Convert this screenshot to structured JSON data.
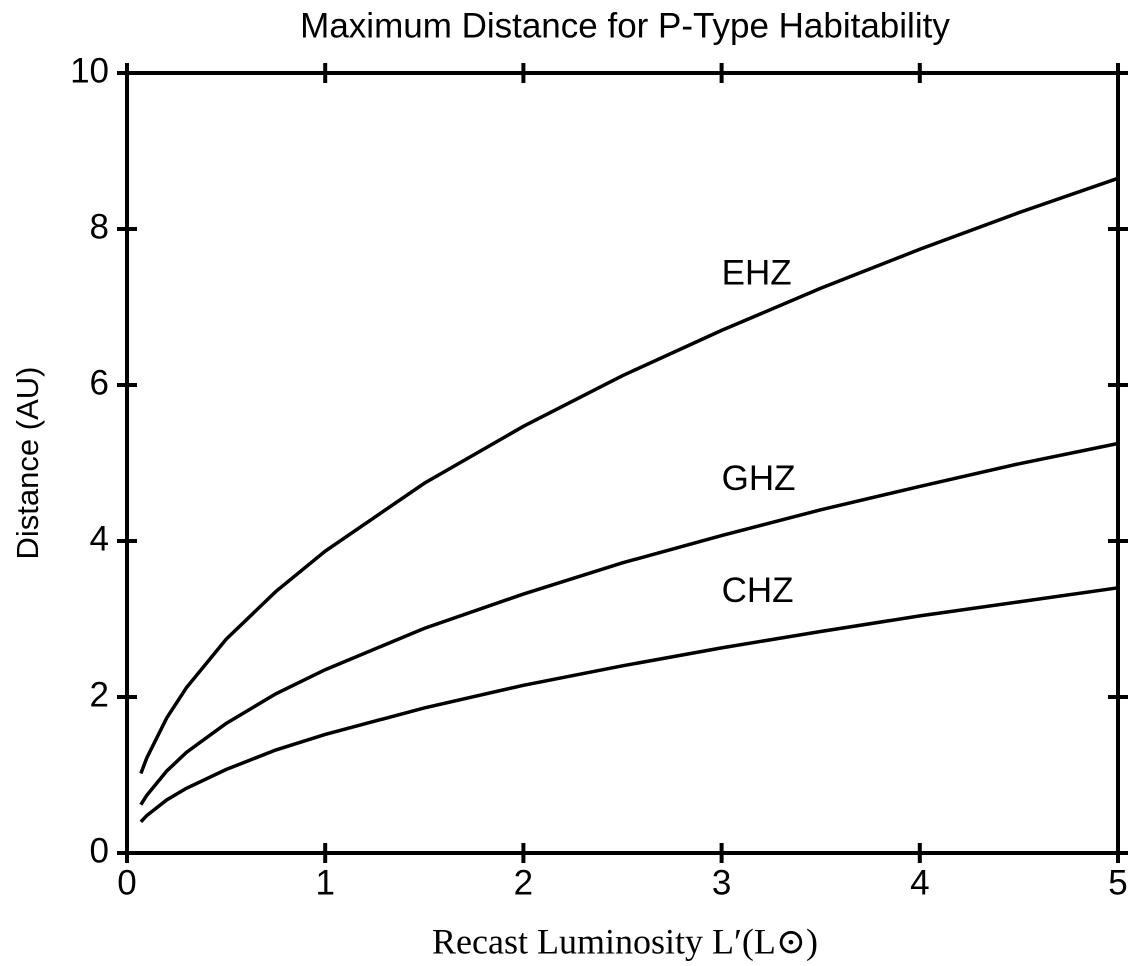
{
  "chart_data": {
    "type": "line",
    "title": "Maximum Distance for P-Type Habitability",
    "x_label": "Recast Luminosity L′(L⊙)",
    "y_label": "Distance (AU)",
    "x": [
      0.07,
      0.1,
      0.2,
      0.3,
      0.5,
      0.75,
      1,
      1.5,
      2,
      2.5,
      3,
      3.5,
      4,
      4.5,
      5
    ],
    "series": [
      {
        "name": "EHZ",
        "color": "#000000",
        "values": [
          1.02,
          1.22,
          1.73,
          2.12,
          2.74,
          3.35,
          3.87,
          4.74,
          5.47,
          6.12,
          6.7,
          7.24,
          7.74,
          8.21,
          8.65
        ]
      },
      {
        "name": "GHZ",
        "color": "#000000",
        "values": [
          0.62,
          0.74,
          1.05,
          1.29,
          1.66,
          2.04,
          2.35,
          2.88,
          3.32,
          3.72,
          4.07,
          4.4,
          4.7,
          4.99,
          5.25
        ]
      },
      {
        "name": "CHZ",
        "color": "#000000",
        "values": [
          0.4,
          0.48,
          0.68,
          0.83,
          1.07,
          1.32,
          1.52,
          1.86,
          2.15,
          2.4,
          2.63,
          2.84,
          3.04,
          3.22,
          3.4
        ]
      }
    ],
    "xlim": [
      0,
      5
    ],
    "xticks": [
      0,
      1,
      2,
      3,
      4,
      5
    ],
    "ylim": [
      0,
      10
    ],
    "yticks": [
      0,
      2,
      4,
      6,
      8,
      10
    ],
    "grid": false
  }
}
